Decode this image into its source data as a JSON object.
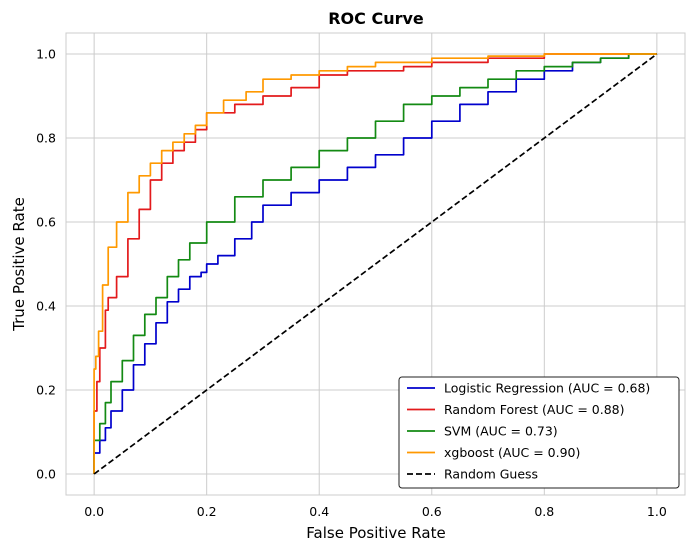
{
  "chart_data": {
    "type": "line",
    "title": "ROC Curve",
    "xlabel": "False Positive Rate",
    "ylabel": "True Positive Rate",
    "xlim": [
      -0.05,
      1.05
    ],
    "ylim": [
      -0.05,
      1.05
    ],
    "xticks": [
      "0.0",
      "0.2",
      "0.4",
      "0.6",
      "0.8",
      "1.0"
    ],
    "yticks": [
      "0.0",
      "0.2",
      "0.4",
      "0.6",
      "0.8",
      "1.0"
    ],
    "grid": true,
    "legend_position": "lower-right",
    "series": [
      {
        "name": "Logistic Regression (AUC = 0.68)",
        "color": "#0000cc",
        "style": "solid",
        "x": [
          0,
          0.01,
          0.02,
          0.03,
          0.05,
          0.07,
          0.09,
          0.11,
          0.13,
          0.15,
          0.17,
          0.19,
          0.2,
          0.22,
          0.25,
          0.28,
          0.3,
          0.35,
          0.4,
          0.45,
          0.5,
          0.55,
          0.6,
          0.65,
          0.7,
          0.75,
          0.8,
          0.85,
          0.9,
          0.95,
          1.0
        ],
        "y": [
          0,
          0.05,
          0.08,
          0.11,
          0.15,
          0.2,
          0.26,
          0.31,
          0.36,
          0.41,
          0.44,
          0.47,
          0.48,
          0.5,
          0.52,
          0.56,
          0.6,
          0.64,
          0.67,
          0.7,
          0.73,
          0.76,
          0.8,
          0.84,
          0.88,
          0.91,
          0.94,
          0.96,
          0.98,
          0.99,
          1.0
        ]
      },
      {
        "name": "Random Forest (AUC = 0.88)",
        "color": "#e31a1c",
        "style": "solid",
        "x": [
          0,
          0.005,
          0.01,
          0.02,
          0.025,
          0.04,
          0.06,
          0.08,
          0.1,
          0.12,
          0.14,
          0.16,
          0.18,
          0.2,
          0.25,
          0.3,
          0.35,
          0.4,
          0.45,
          0.5,
          0.55,
          0.6,
          0.7,
          0.8,
          0.9,
          1.0
        ],
        "y": [
          0,
          0.15,
          0.22,
          0.3,
          0.39,
          0.42,
          0.47,
          0.56,
          0.63,
          0.7,
          0.74,
          0.77,
          0.79,
          0.82,
          0.86,
          0.88,
          0.9,
          0.92,
          0.95,
          0.96,
          0.96,
          0.97,
          0.98,
          0.99,
          1.0,
          1.0
        ]
      },
      {
        "name": "SVM (AUC = 0.73)",
        "color": "#138a13",
        "style": "solid",
        "x": [
          0,
          0.01,
          0.02,
          0.03,
          0.05,
          0.07,
          0.09,
          0.11,
          0.13,
          0.15,
          0.17,
          0.2,
          0.25,
          0.3,
          0.35,
          0.4,
          0.45,
          0.5,
          0.55,
          0.6,
          0.65,
          0.7,
          0.75,
          0.8,
          0.85,
          0.9,
          0.95,
          1.0
        ],
        "y": [
          0,
          0.08,
          0.12,
          0.17,
          0.22,
          0.27,
          0.33,
          0.38,
          0.42,
          0.47,
          0.51,
          0.55,
          0.6,
          0.66,
          0.7,
          0.73,
          0.77,
          0.8,
          0.84,
          0.88,
          0.9,
          0.92,
          0.94,
          0.96,
          0.97,
          0.98,
          0.99,
          1.0
        ]
      },
      {
        "name": "xgboost (AUC = 0.90)",
        "color": "#ff9900",
        "style": "solid",
        "x": [
          0,
          0.003,
          0.008,
          0.015,
          0.025,
          0.04,
          0.06,
          0.08,
          0.1,
          0.12,
          0.14,
          0.16,
          0.18,
          0.2,
          0.23,
          0.27,
          0.3,
          0.35,
          0.4,
          0.45,
          0.5,
          0.6,
          0.7,
          0.8,
          0.9,
          1.0
        ],
        "y": [
          0,
          0.25,
          0.28,
          0.34,
          0.45,
          0.54,
          0.6,
          0.67,
          0.71,
          0.74,
          0.77,
          0.79,
          0.81,
          0.83,
          0.86,
          0.89,
          0.91,
          0.94,
          0.95,
          0.96,
          0.97,
          0.98,
          0.99,
          0.995,
          1.0,
          1.0
        ]
      },
      {
        "name": "Random Guess",
        "color": "#000000",
        "style": "dashed",
        "x": [
          0,
          1
        ],
        "y": [
          0,
          1
        ]
      }
    ]
  }
}
